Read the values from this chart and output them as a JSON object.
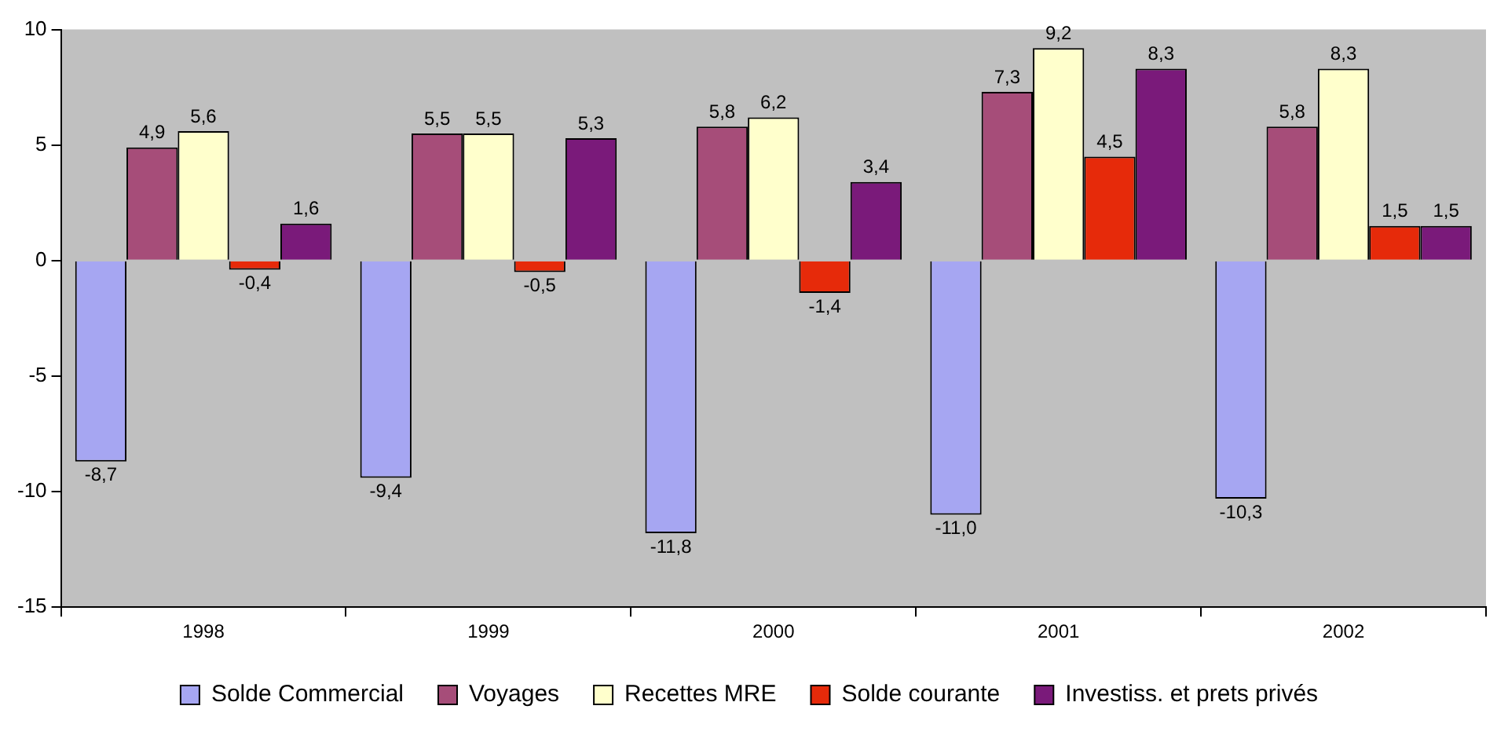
{
  "chart_data": {
    "type": "bar",
    "categories": [
      "1998",
      "1999",
      "2000",
      "2001",
      "2002"
    ],
    "series": [
      {
        "name": "Solde Commercial",
        "color": "#a6a6f2",
        "values": [
          -8.7,
          -9.4,
          -11.8,
          -11.0,
          -10.3
        ],
        "value_labels": [
          "-8,7",
          "-9,4",
          "-11,8",
          "-11,0",
          "-10,3"
        ]
      },
      {
        "name": "Voyages",
        "color": "#a64d79",
        "values": [
          4.9,
          5.5,
          5.8,
          7.3,
          5.8
        ],
        "value_labels": [
          "4,9",
          "5,5",
          "5,8",
          "7,3",
          "5,8"
        ]
      },
      {
        "name": "Recettes MRE",
        "color": "#ffffcc",
        "values": [
          5.6,
          5.5,
          6.2,
          9.2,
          8.3
        ],
        "value_labels": [
          "5,6",
          "5,5",
          "6,2",
          "9,2",
          "8,3"
        ]
      },
      {
        "name": "Solde courante",
        "color": "#e62a0a",
        "values": [
          -0.4,
          -0.5,
          -1.4,
          4.5,
          1.5
        ],
        "value_labels": [
          "-0,4",
          "-0,5",
          "-1,4",
          "4,5",
          "1,5"
        ]
      },
      {
        "name": "Investiss. et prets privés",
        "color": "#7a1a7a",
        "values": [
          1.6,
          5.3,
          3.4,
          8.3,
          1.5
        ],
        "value_labels": [
          "1,6",
          "5,3",
          "3,4",
          "8,3",
          "1,5"
        ]
      }
    ],
    "ylim": [
      -15,
      10
    ],
    "yticks": [
      -15,
      -10,
      -5,
      0,
      5,
      10
    ],
    "grid": false,
    "legend": "bottom"
  }
}
